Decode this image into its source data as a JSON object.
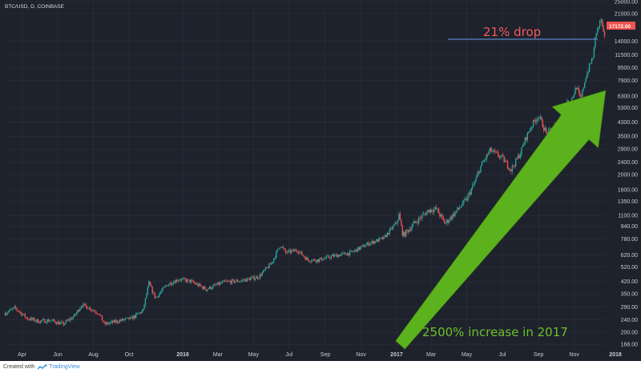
{
  "chart_data": {
    "type": "line",
    "symbol_label": "BTC/USD, D, COINBASE",
    "last_price_label": "17172.00",
    "y_scale": "log",
    "ylim": [
      155,
      25000
    ],
    "y_ticks": [
      "25000.00",
      "21000.00",
      "14000.00",
      "11500.00",
      "9500.00",
      "7900.00",
      "6300.00",
      "5300.00",
      "4300.00",
      "3500.00",
      "2900.00",
      "2400.00",
      "2000.00",
      "1600.00",
      "1350.00",
      "1100.00",
      "940.00",
      "780.00",
      "620.00",
      "520.00",
      "420.00",
      "350.00",
      "290.00",
      "240.00",
      "200.00",
      "168.00"
    ],
    "x_ticks": [
      "Apr",
      "Jun",
      "Aug",
      "Oct",
      "2016",
      "Mar",
      "May",
      "Jul",
      "Sep",
      "Nov",
      "2017",
      "Mar",
      "May",
      "Jul",
      "Sep",
      "Nov",
      "2018"
    ],
    "series": [
      {
        "x": [
          "2015-03-03",
          "2015-03-20",
          "2015-04-10",
          "2015-04-30",
          "2015-05-20",
          "2015-06-10",
          "2015-06-30",
          "2015-07-12",
          "2015-07-25",
          "2015-08-10",
          "2015-08-20",
          "2015-09-10",
          "2015-10-05",
          "2015-10-25",
          "2015-11-04",
          "2015-11-15",
          "2015-12-05",
          "2015-12-25",
          "2016-01-15",
          "2016-02-10",
          "2016-03-10",
          "2016-04-10",
          "2016-05-10",
          "2016-06-01",
          "2016-06-16",
          "2016-06-25",
          "2016-07-15",
          "2016-08-02",
          "2016-08-20",
          "2016-09-15",
          "2016-10-15",
          "2016-11-15",
          "2016-12-10",
          "2017-01-01",
          "2017-01-05",
          "2017-01-12",
          "2017-02-01",
          "2017-02-25",
          "2017-03-10",
          "2017-03-25",
          "2017-04-15",
          "2017-05-01",
          "2017-05-15",
          "2017-05-25",
          "2017-06-10",
          "2017-06-20",
          "2017-07-01",
          "2017-07-16",
          "2017-08-01",
          "2017-08-10",
          "2017-08-20",
          "2017-09-01",
          "2017-09-15",
          "2017-09-25",
          "2017-10-05",
          "2017-10-15",
          "2017-10-25",
          "2017-11-05",
          "2017-11-12",
          "2017-11-20",
          "2017-11-28",
          "2017-12-04",
          "2017-12-08",
          "2017-12-12",
          "2017-12-17",
          "2017-12-21",
          "2017-12-23"
        ],
        "y": [
          265,
          285,
          245,
          235,
          238,
          225,
          255,
          300,
          285,
          265,
          225,
          235,
          245,
          275,
          410,
          330,
          400,
          435,
          420,
          375,
          415,
          425,
          450,
          550,
          720,
          640,
          665,
          575,
          575,
          610,
          640,
          735,
          790,
          995,
          1110,
          820,
          990,
          1190,
          1210,
          980,
          1190,
          1400,
          1800,
          2250,
          2850,
          2700,
          2550,
          2150,
          2750,
          3400,
          4100,
          4750,
          3600,
          3950,
          4300,
          5600,
          5750,
          7200,
          5900,
          8200,
          9900,
          11500,
          15800,
          17000,
          19300,
          15500,
          14500
        ]
      }
    ],
    "annotations": [
      {
        "text": "21% drop",
        "color": "#f25a5a"
      },
      {
        "text": "2500% increase in 2017",
        "color": "#6cc229"
      }
    ],
    "grid": true,
    "colors": {
      "background": "#1e222d",
      "up": "#26a69a",
      "down": "#ef5350",
      "grid": "#2a2e39",
      "arrow": "#5cb21d",
      "level_line": "#5b84c4",
      "price_tag": "#ef5350"
    }
  },
  "footer": {
    "created_label": "Created with",
    "brand_label": "TradingView"
  }
}
